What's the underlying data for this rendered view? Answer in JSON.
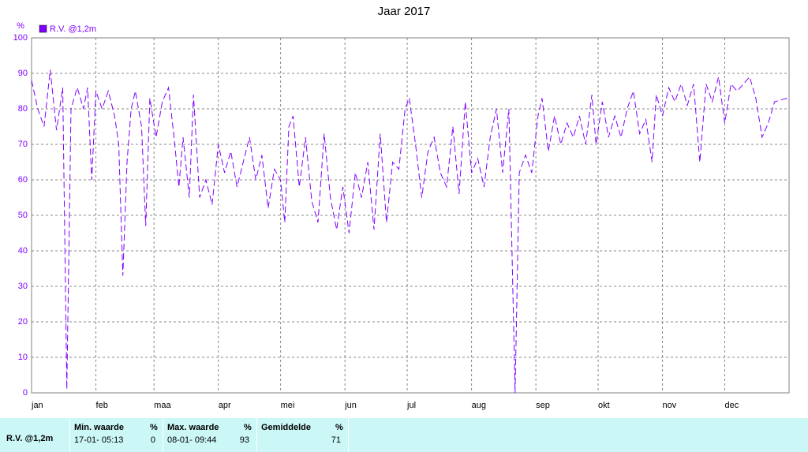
{
  "chart_data": {
    "type": "line",
    "title": "Jaar 2017",
    "y_label": "%",
    "x": [
      0,
      3,
      6,
      9,
      12,
      15,
      17,
      19,
      22,
      25,
      27,
      29,
      31,
      34,
      37,
      40,
      42,
      44,
      46,
      48,
      50,
      53,
      55,
      57,
      60,
      63,
      66,
      69,
      71,
      73,
      76,
      78,
      81,
      84,
      87,
      90,
      93,
      96,
      99,
      102,
      105,
      108,
      111,
      114,
      117,
      120,
      122,
      124,
      126,
      129,
      132,
      135,
      138,
      141,
      144,
      147,
      150,
      153,
      156,
      159,
      162,
      165,
      168,
      171,
      174,
      177,
      180,
      182,
      185,
      188,
      191,
      194,
      197,
      200,
      203,
      206,
      209,
      212,
      215,
      218,
      221,
      224,
      227,
      230,
      233,
      235,
      238,
      241,
      244,
      246,
      249,
      252,
      255,
      258,
      261,
      264,
      267,
      270,
      272,
      275,
      278,
      281,
      284,
      287,
      290,
      293,
      296,
      299,
      301,
      304,
      307,
      310,
      313,
      316,
      319,
      322,
      325,
      328,
      331,
      334,
      337,
      340,
      343,
      346,
      349,
      352,
      355,
      358,
      364
    ],
    "series": [
      {
        "name": "R.V. @1,2m",
        "color": "#7f00ff",
        "values": [
          88,
          80,
          75,
          91,
          74,
          86,
          1,
          80,
          86,
          80,
          86,
          60,
          85,
          80,
          85,
          78,
          70,
          33,
          65,
          80,
          85,
          75,
          47,
          83,
          72,
          82,
          86,
          70,
          58,
          72,
          55,
          84,
          55,
          60,
          53,
          70,
          62,
          68,
          58,
          65,
          72,
          60,
          67,
          52,
          63,
          60,
          48,
          75,
          78,
          58,
          72,
          54,
          48,
          73,
          55,
          46,
          58,
          45,
          62,
          55,
          65,
          46,
          73,
          48,
          65,
          63,
          80,
          83,
          70,
          55,
          68,
          72,
          62,
          58,
          75,
          56,
          82,
          62,
          66,
          58,
          72,
          80,
          62,
          80,
          0,
          62,
          67,
          62,
          78,
          83,
          68,
          78,
          70,
          76,
          72,
          78,
          70,
          84,
          70,
          82,
          72,
          78,
          72,
          80,
          85,
          73,
          77,
          65,
          84,
          78,
          86,
          82,
          87,
          81,
          87,
          65,
          87,
          82,
          89,
          76,
          87,
          85,
          87,
          89,
          83,
          72,
          76,
          82,
          83
        ]
      }
    ],
    "xlim": [
      0,
      365
    ],
    "ylim": [
      0,
      100
    ],
    "xticks": [
      {
        "value": 0,
        "label": "jan"
      },
      {
        "value": 31,
        "label": "feb"
      },
      {
        "value": 59,
        "label": "maa"
      },
      {
        "value": 90,
        "label": "apr"
      },
      {
        "value": 120,
        "label": "mei"
      },
      {
        "value": 151,
        "label": "jun"
      },
      {
        "value": 181,
        "label": "jul"
      },
      {
        "value": 212,
        "label": "aug"
      },
      {
        "value": 243,
        "label": "sep"
      },
      {
        "value": 273,
        "label": "okt"
      },
      {
        "value": 304,
        "label": "nov"
      },
      {
        "value": 334,
        "label": "dec"
      }
    ],
    "yticks": [
      0,
      10,
      20,
      30,
      40,
      50,
      60,
      70,
      80,
      90,
      100
    ],
    "grid": true,
    "line_style": "dashed"
  },
  "summary": {
    "row_label": "R.V. @1,2m",
    "columns": [
      {
        "header": "Min. waarde",
        "unit": "%",
        "time": "17-01- 05:13",
        "value": 0
      },
      {
        "header": "Max. waarde",
        "unit": "%",
        "time": "08-01- 09:44",
        "value": 93
      },
      {
        "header": "Gemiddelde",
        "unit": "%",
        "value": 71
      }
    ]
  }
}
